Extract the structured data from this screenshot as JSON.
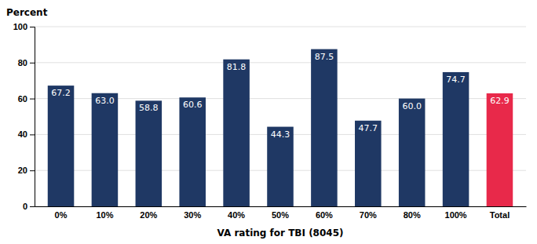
{
  "chart_data": {
    "type": "bar",
    "xlabel": "VA rating for TBI (8045)",
    "ylabel": "Percent",
    "categories": [
      "0%",
      "10%",
      "20%",
      "30%",
      "40%",
      "50%",
      "60%",
      "70%",
      "80%",
      "100%",
      "Total"
    ],
    "values": [
      67.2,
      63.0,
      58.8,
      60.6,
      81.8,
      44.3,
      87.5,
      47.7,
      60.0,
      74.7,
      62.9
    ],
    "value_labels": [
      "67.2",
      "63.0",
      "58.8",
      "60.6",
      "81.8",
      "44.3",
      "87.5",
      "47.7",
      "60.0",
      "74.7",
      "62.9"
    ],
    "colors": [
      "#1F3864",
      "#1F3864",
      "#1F3864",
      "#1F3864",
      "#1F3864",
      "#1F3864",
      "#1F3864",
      "#1F3864",
      "#1F3864",
      "#1F3864",
      "#E8294A"
    ],
    "ylim": [
      0,
      100
    ],
    "yticks": [
      0,
      20,
      40,
      60,
      80,
      100
    ],
    "grid": true,
    "data_labels": true
  }
}
